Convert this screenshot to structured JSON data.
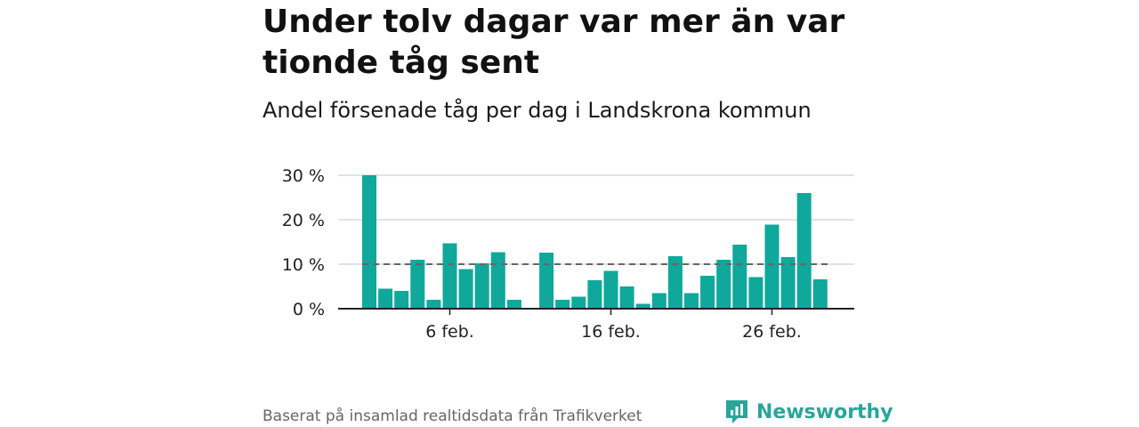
{
  "title": "Under tolv dagar var mer än var tionde tåg sent",
  "subtitle": "Andel försenade tåg per dag i Landskrona kommun",
  "source": "Baserat på insamlad realtidsdata från Trafikverket",
  "brand": "Newsworthy",
  "colors": {
    "bar": "#0fa89b",
    "reference_line": "#666666",
    "grid": "#d9d9d9",
    "axis": "#222222",
    "brand": "#2aa59a"
  },
  "chart_data": {
    "type": "bar",
    "categories": [
      "1 feb.",
      "2 feb.",
      "3 feb.",
      "4 feb.",
      "5 feb.",
      "6 feb.",
      "7 feb.",
      "8 feb.",
      "9 feb.",
      "10 feb.",
      "11 feb.",
      "12 feb.",
      "13 feb.",
      "14 feb.",
      "15 feb.",
      "16 feb.",
      "17 feb.",
      "18 feb.",
      "19 feb.",
      "20 feb.",
      "21 feb.",
      "22 feb.",
      "23 feb.",
      "24 feb.",
      "25 feb.",
      "26 feb.",
      "27 feb.",
      "28 feb.",
      "29 feb."
    ],
    "values": [
      30,
      4.5,
      4,
      11,
      2,
      14.7,
      8.9,
      10.2,
      12.7,
      2,
      null,
      12.6,
      2,
      2.7,
      6.4,
      8.5,
      5,
      1.1,
      3.5,
      11.8,
      3.5,
      7.4,
      11,
      14.4,
      7.1,
      18.9,
      11.6,
      26,
      6.6
    ],
    "reference_value": 10,
    "ylim": [
      0,
      30
    ],
    "y_ticks": [
      0,
      10,
      20,
      30
    ],
    "y_tick_labels": [
      "0 %",
      "10 %",
      "20 %",
      "30 %"
    ],
    "x_ticks": [
      {
        "category": "6 feb.",
        "label": "6 feb."
      },
      {
        "category": "16 feb.",
        "label": "16 feb."
      },
      {
        "category": "26 feb.",
        "label": "26 feb."
      }
    ],
    "grid": true,
    "legend": "none"
  }
}
